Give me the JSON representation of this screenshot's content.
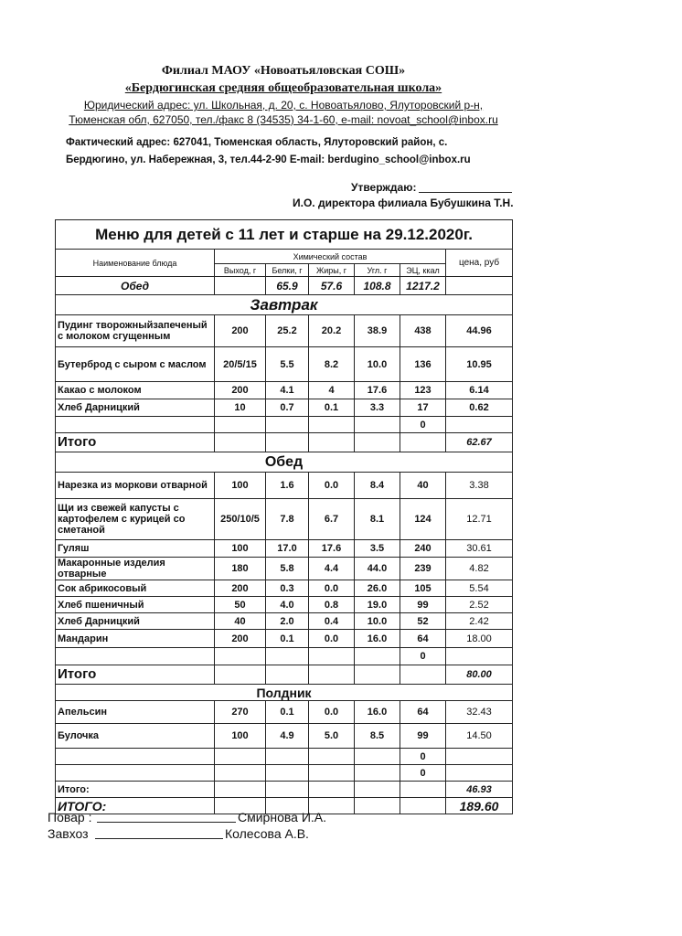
{
  "header": {
    "branch": "Филиал МАОУ «Новоатьяловская СОШ»",
    "school": "«Бердюгинская средняя общеобразовательная школа»",
    "legal_address": [
      "Юридический адрес: ул. Школьная, д. 20, с. Новоатьялово, Ялуторовский р-н,",
      "Тюменская обл, 627050, тел./факс 8 (34535) 34-1-60,  e-mail: novoat_school@inbox.ru"
    ],
    "actual_address": [
      "Фактический адрес: 627041, Тюменская область,     Ялуторовский район,  с.",
      "Бердюгино,   ул. Набережная, 3,  тел.44-2-90     E-mail: berdugino_school@inbox.ru"
    ],
    "approve": "Утверждаю:",
    "director": "И.О. директора филиала Бубушкина Т.Н."
  },
  "table": {
    "title": "Меню для детей с 11 лет и старше на 29.12.2020г.",
    "columns": {
      "name": "Наименование блюда",
      "chem": "Химический состав",
      "yield": "Выход, г",
      "protein": "Белки, г",
      "fat": "Жиры, г",
      "carbs": "Угл. г",
      "energy": "ЭЦ, ккал",
      "price": "цена, руб"
    },
    "summary": [
      "Обед",
      null,
      "65.9",
      "57.6",
      "108.8",
      "1217.2",
      null
    ],
    "sections": [
      {
        "title": "Завтрак",
        "rows": [
          [
            "Пудинг творожныйзапеченый с молоком сгущенным",
            "200",
            "25.2",
            "20.2",
            "38.9",
            "438",
            "44.96"
          ],
          [
            "Бутерброд с сыром с маслом",
            "20/5/15",
            "5.5",
            "8.2",
            "10.0",
            "136",
            "10.95"
          ],
          [
            "Какао с молоком",
            "200",
            "4.1",
            "4",
            "17.6",
            "123",
            "6.14"
          ],
          [
            "Хлеб Дарницкий",
            "10",
            "0.7",
            "0.1",
            "3.3",
            "17",
            "0.62"
          ],
          [
            null,
            null,
            null,
            null,
            null,
            "0",
            null
          ]
        ],
        "total": {
          "label": "Итого",
          "price": "62.67"
        }
      },
      {
        "title": "Обед",
        "rows": [
          [
            "Нарезка из моркови отварной",
            "100",
            "1.6",
            "0.0",
            "8.4",
            "40",
            "3.38"
          ],
          [
            "Щи из свежей капусты с картофелем с курицей со сметаной",
            "250/10/5",
            "7.8",
            "6.7",
            "8.1",
            "124",
            "12.71"
          ],
          [
            "Гуляш",
            "100",
            "17.0",
            "17.6",
            "3.5",
            "240",
            "30.61"
          ],
          [
            "Макаронные изделия отварные",
            "180",
            "5.8",
            "4.4",
            "44.0",
            "239",
            "4.82"
          ],
          [
            "Сок абрикосовый",
            "200",
            "0.3",
            "0.0",
            "26.0",
            "105",
            "5.54"
          ],
          [
            "Хлеб пшеничный",
            "50",
            "4.0",
            "0.8",
            "19.0",
            "99",
            "2.52"
          ],
          [
            "Хлеб Дарницкий",
            "40",
            "2.0",
            "0.4",
            "10.0",
            "52",
            "2.42"
          ],
          [
            "Мандарин",
            "200",
            "0.1",
            "0.0",
            "16.0",
            "64",
            "18.00"
          ],
          [
            null,
            null,
            null,
            null,
            null,
            "0",
            null
          ]
        ],
        "total": {
          "label": "Итого",
          "price": "80.00"
        }
      },
      {
        "title": "Полдник",
        "rows": [
          [
            "Апельсин",
            "270",
            "0.1",
            "0.0",
            "16.0",
            "64",
            "32.43"
          ],
          [
            "Булочка",
            "100",
            "4.9",
            "5.0",
            "8.5",
            "99",
            "14.50"
          ],
          [
            null,
            null,
            null,
            null,
            null,
            "0",
            null
          ],
          [
            null,
            null,
            null,
            null,
            null,
            "0",
            null
          ]
        ],
        "total": {
          "label": "Итого:",
          "price": "46.93"
        }
      }
    ],
    "grand_total": {
      "label": "ИТОГО:",
      "price": "189.60"
    }
  },
  "footer": {
    "cook": {
      "role": "Повар :",
      "name": "Смирнова И.А."
    },
    "storekeeper": {
      "role": "Завхоз",
      "name": "Колесова А.В."
    }
  }
}
